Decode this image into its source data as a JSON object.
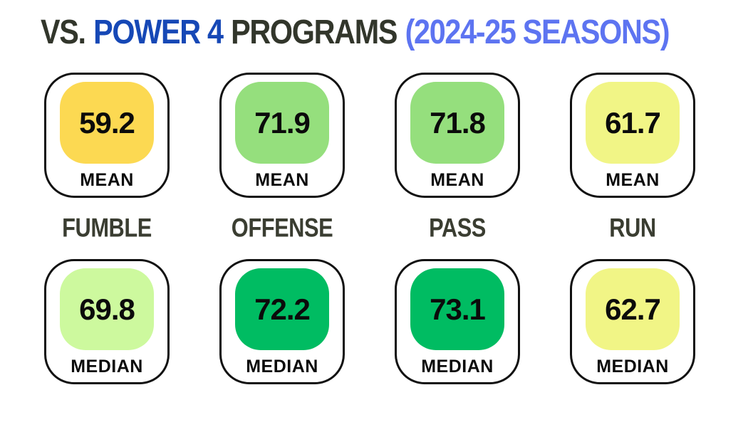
{
  "title": {
    "prefix": "VS.",
    "team": "POWER 4",
    "suffix": "PROGRAMS",
    "season": "(2024-25 SEASONS)"
  },
  "colors": {
    "title_text": "#32362B",
    "title_team": "#1648B6",
    "title_season": "#5D74F1",
    "card_border": "#111111"
  },
  "columns": [
    {
      "label": "FUMBLE",
      "mean": {
        "value": "59.2",
        "label": "MEAN",
        "color": "#FCD952"
      },
      "median": {
        "value": "69.8",
        "label": "MEDIAN",
        "color": "#CDF99E"
      }
    },
    {
      "label": "OFFENSE",
      "mean": {
        "value": "71.9",
        "label": "MEAN",
        "color": "#95DF7D"
      },
      "median": {
        "value": "72.2",
        "label": "MEDIAN",
        "color": "#00BC62"
      }
    },
    {
      "label": "PASS",
      "mean": {
        "value": "71.8",
        "label": "MEAN",
        "color": "#95DF7D"
      },
      "median": {
        "value": "73.1",
        "label": "MEDIAN",
        "color": "#00BC62"
      }
    },
    {
      "label": "RUN",
      "mean": {
        "value": "61.7",
        "label": "MEAN",
        "color": "#F1F586"
      },
      "median": {
        "value": "62.7",
        "label": "MEDIAN",
        "color": "#F1F586"
      }
    }
  ],
  "chart_data": {
    "type": "table",
    "title": "VS. POWER 4 PROGRAMS (2024-25 SEASONS)",
    "categories": [
      "FUMBLE",
      "OFFENSE",
      "PASS",
      "RUN"
    ],
    "series": [
      {
        "name": "MEAN",
        "values": [
          59.2,
          71.9,
          71.8,
          61.7
        ]
      },
      {
        "name": "MEDIAN",
        "values": [
          69.8,
          72.2,
          73.1,
          62.7
        ]
      }
    ],
    "layout": "two rows of stat cards (MEAN top, MEDIAN bottom), category labels between rows"
  }
}
